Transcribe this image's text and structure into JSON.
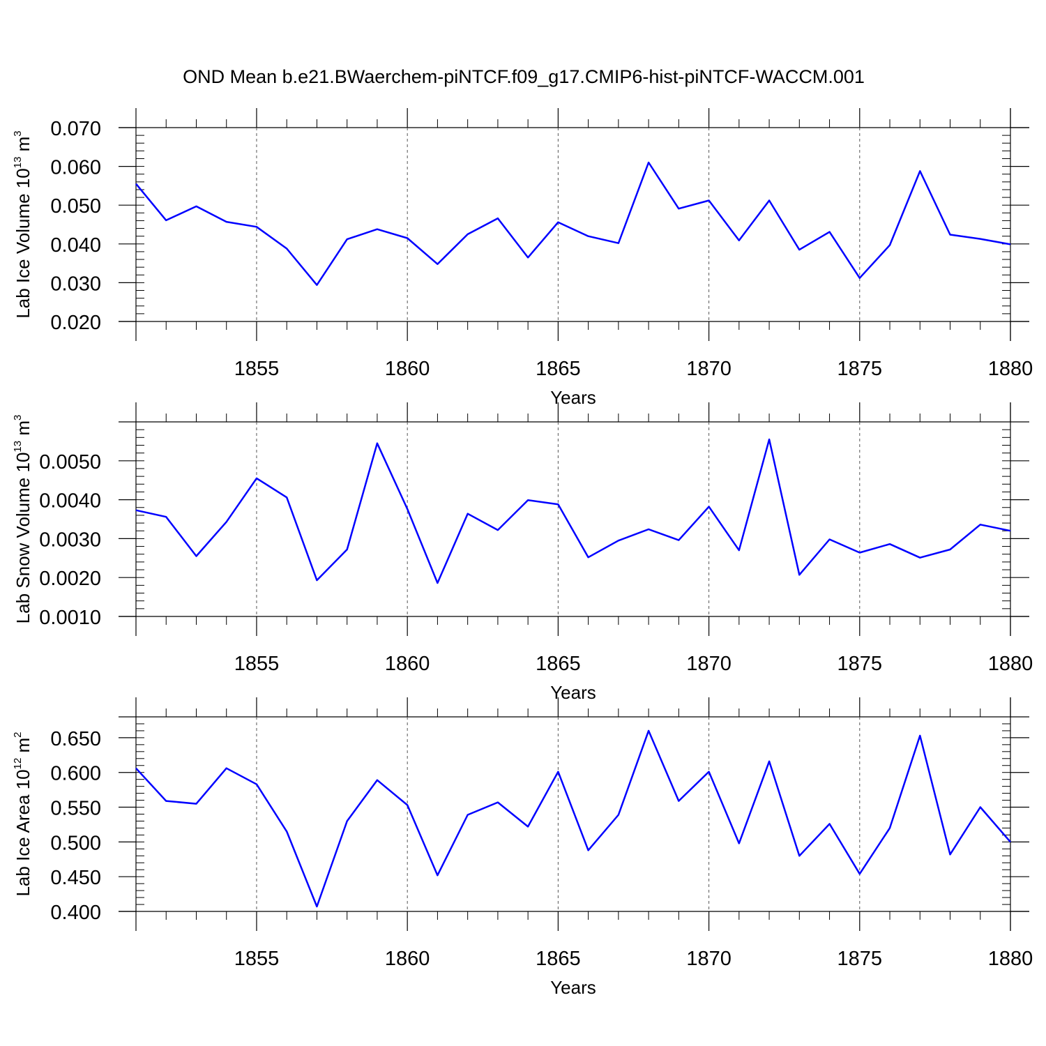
{
  "title": "OND Mean b.e21.BWaerchem-piNTCF.f09_g17.CMIP6-hist-piNTCF-WACCM.001",
  "colors": {
    "line": "#0000ff",
    "axis": "#000000",
    "grid": "#555555"
  },
  "chart_data": [
    {
      "type": "line",
      "name": "lab-ice-volume",
      "ylabel": "Lab Ice Volume 10",
      "ylabel_exp": "13",
      "ylabel_unit": " m",
      "ylabel_unit_exp": "3",
      "xlabel": "Years",
      "xlim": [
        1851,
        1880
      ],
      "ylim": [
        0.02,
        0.07
      ],
      "yticks": [
        0.02,
        0.03,
        0.04,
        0.05,
        0.06,
        0.07
      ],
      "ytick_labels": [
        "0.020",
        "0.030",
        "0.040",
        "0.050",
        "0.060",
        "0.070"
      ],
      "xticks": [
        1855,
        1860,
        1865,
        1870,
        1875,
        1880
      ],
      "xtick_labels": [
        "1855",
        "1860",
        "1865",
        "1870",
        "1875",
        "1880"
      ],
      "x": [
        1851,
        1852,
        1853,
        1854,
        1855,
        1856,
        1857,
        1858,
        1859,
        1860,
        1861,
        1862,
        1863,
        1864,
        1865,
        1866,
        1867,
        1868,
        1869,
        1870,
        1871,
        1872,
        1873,
        1874,
        1875,
        1876,
        1877,
        1878,
        1879,
        1880
      ],
      "values": [
        0.0555,
        0.0461,
        0.0497,
        0.0457,
        0.0444,
        0.0388,
        0.0294,
        0.0412,
        0.0438,
        0.0415,
        0.0348,
        0.0425,
        0.0466,
        0.0365,
        0.0456,
        0.042,
        0.0402,
        0.061,
        0.0491,
        0.0512,
        0.0409,
        0.0512,
        0.0385,
        0.0431,
        0.0312,
        0.0397,
        0.0588,
        0.0424,
        0.0413,
        0.0399
      ]
    },
    {
      "type": "line",
      "name": "lab-snow-volume",
      "ylabel": "Lab Snow Volume 10",
      "ylabel_exp": "13",
      "ylabel_unit": " m",
      "ylabel_unit_exp": "3",
      "xlabel": "Years",
      "xlim": [
        1851,
        1880
      ],
      "ylim": [
        0.001,
        0.006
      ],
      "yticks": [
        0.001,
        0.002,
        0.003,
        0.004,
        0.005
      ],
      "ytick_labels": [
        "0.0010",
        "0.0020",
        "0.0030",
        "0.0040",
        "0.0050"
      ],
      "xticks": [
        1855,
        1860,
        1865,
        1870,
        1875,
        1880
      ],
      "xtick_labels": [
        "1855",
        "1860",
        "1865",
        "1870",
        "1875",
        "1880"
      ],
      "x": [
        1851,
        1852,
        1853,
        1854,
        1855,
        1856,
        1857,
        1858,
        1859,
        1860,
        1861,
        1862,
        1863,
        1864,
        1865,
        1866,
        1867,
        1868,
        1869,
        1870,
        1871,
        1872,
        1873,
        1874,
        1875,
        1876,
        1877,
        1878,
        1879,
        1880
      ],
      "values": [
        0.00373,
        0.00356,
        0.00255,
        0.00343,
        0.00455,
        0.00406,
        0.00193,
        0.00272,
        0.00545,
        0.00376,
        0.00186,
        0.00364,
        0.00322,
        0.00399,
        0.00388,
        0.00252,
        0.00295,
        0.00324,
        0.00296,
        0.00382,
        0.0027,
        0.00555,
        0.00207,
        0.00298,
        0.00264,
        0.00286,
        0.00251,
        0.00272,
        0.00336,
        0.0032
      ]
    },
    {
      "type": "line",
      "name": "lab-ice-area",
      "ylabel": "Lab Ice Area 10",
      "ylabel_exp": "12",
      "ylabel_unit": " m",
      "ylabel_unit_exp": "2",
      "xlabel": "Years",
      "xlim": [
        1851,
        1880
      ],
      "ylim": [
        0.4,
        0.68
      ],
      "yticks": [
        0.4,
        0.45,
        0.5,
        0.55,
        0.6,
        0.65
      ],
      "ytick_labels": [
        "0.400",
        "0.450",
        "0.500",
        "0.550",
        "0.600",
        "0.650"
      ],
      "xticks": [
        1855,
        1860,
        1865,
        1870,
        1875,
        1880
      ],
      "xtick_labels": [
        "1855",
        "1860",
        "1865",
        "1870",
        "1875",
        "1880"
      ],
      "x": [
        1851,
        1852,
        1853,
        1854,
        1855,
        1856,
        1857,
        1858,
        1859,
        1860,
        1861,
        1862,
        1863,
        1864,
        1865,
        1866,
        1867,
        1868,
        1869,
        1870,
        1871,
        1872,
        1873,
        1874,
        1875,
        1876,
        1877,
        1878,
        1879,
        1880
      ],
      "values": [
        0.606,
        0.559,
        0.555,
        0.606,
        0.583,
        0.515,
        0.407,
        0.53,
        0.589,
        0.553,
        0.452,
        0.539,
        0.557,
        0.522,
        0.601,
        0.488,
        0.539,
        0.66,
        0.559,
        0.601,
        0.498,
        0.616,
        0.48,
        0.526,
        0.454,
        0.52,
        0.653,
        0.482,
        0.55,
        0.5
      ]
    }
  ]
}
